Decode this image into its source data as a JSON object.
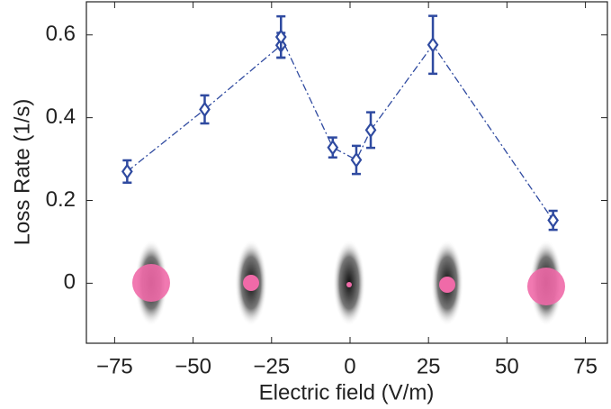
{
  "chart_data": {
    "type": "line",
    "xlabel": "Electric field (V/m)",
    "ylabel": "Loss Rate (1/s)",
    "xlim": [
      -84,
      82
    ],
    "ylim": [
      -0.145,
      0.68
    ],
    "xticks": [
      {
        "value": -75,
        "label": "−75"
      },
      {
        "value": -50,
        "label": "−50"
      },
      {
        "value": -25,
        "label": "−25"
      },
      0,
      25,
      50,
      75
    ],
    "yticks": [
      0,
      0.2,
      0.4,
      0.6
    ],
    "series": [
      {
        "color": "#2f4aa0",
        "x": [
          -71,
          -46.3,
          -22,
          -22,
          -5.5,
          2,
          6.6,
          26.4,
          64.7
        ],
        "values": [
          0.27,
          0.42,
          0.575,
          0.595,
          0.328,
          0.298,
          0.37,
          0.576,
          0.152
        ],
        "errors": [
          0.027,
          0.034,
          0.03,
          0.05,
          0.024,
          0.034,
          0.043,
          0.07,
          0.023
        ]
      }
    ]
  }
}
